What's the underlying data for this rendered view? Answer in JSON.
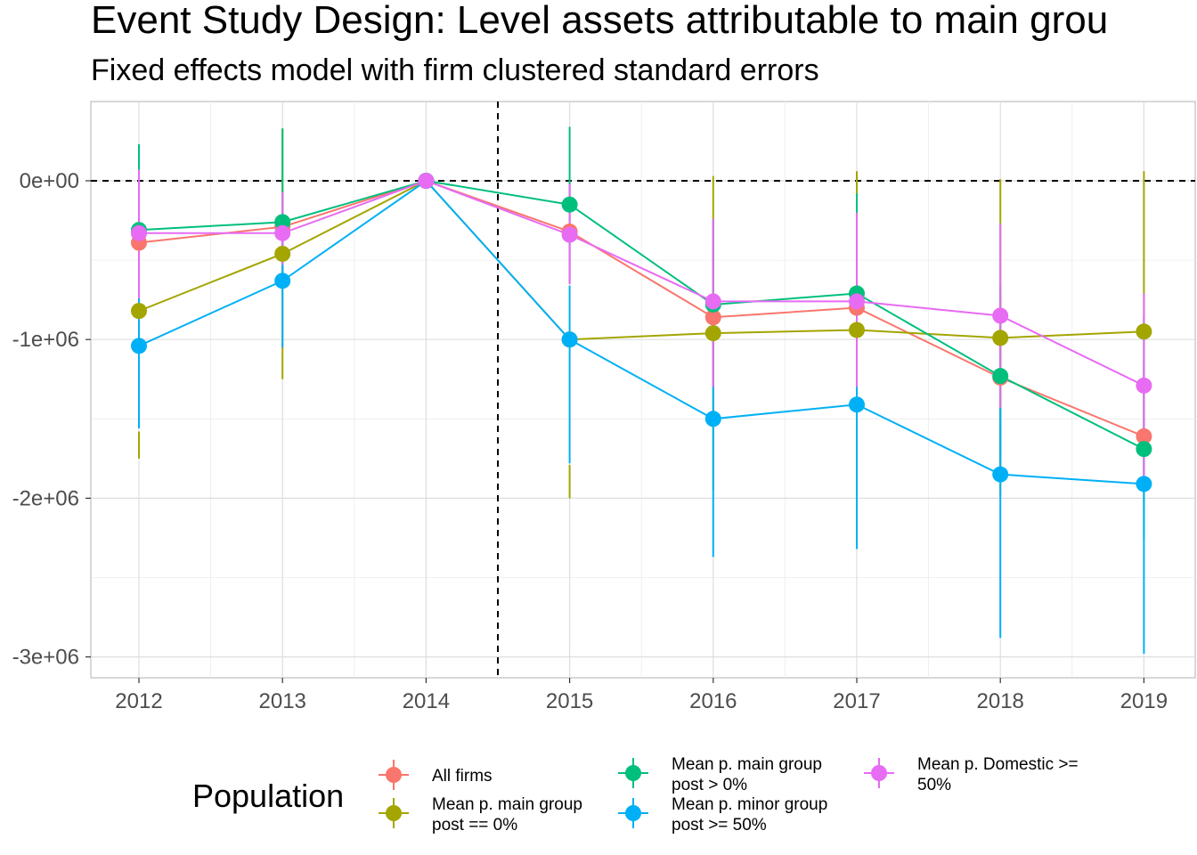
{
  "chart_data": {
    "type": "line",
    "title": "Event Study Design: Level assets attributable to main grou",
    "subtitle": "Fixed effects model with firm clustered standard errors",
    "xlabel": "",
    "ylabel": "",
    "x": [
      2012,
      2013,
      2014,
      2015,
      2016,
      2017,
      2018,
      2019
    ],
    "x_tick_labels": [
      "2012",
      "2013",
      "2014",
      "2015",
      "2016",
      "2017",
      "2018",
      "2019"
    ],
    "y_ticks": [
      0,
      -1000000,
      -2000000,
      -3000000
    ],
    "y_tick_labels": [
      "0e+00",
      "-1e+06",
      "-2e+06",
      "-3e+06"
    ],
    "xlim": [
      2011.7,
      2019.35
    ],
    "ylim": [
      -3140000,
      500000
    ],
    "reference_lines": {
      "horizontal_y": 0,
      "vertical_x": 2014.5
    },
    "grid": true,
    "legend": {
      "title": "Population",
      "position": "bottom"
    },
    "series": [
      {
        "name": "All firms",
        "color": "#F8766D",
        "values": [
          -390000,
          -290000,
          0,
          -320000,
          -860000,
          -800000,
          -1240000,
          -1610000
        ],
        "lower": [
          -720000,
          -560000,
          0,
          -650000,
          -1270000,
          -1300000,
          -1760000,
          -2050000
        ],
        "upper": [
          -60000,
          -20000,
          0,
          10000,
          -450000,
          -300000,
          -720000,
          -1170000
        ]
      },
      {
        "name": "Mean p. main group\npost == 0%",
        "color": "#A3A500",
        "values": [
          -820000,
          -460000,
          0,
          -1000000,
          -960000,
          -940000,
          -990000,
          -950000
        ],
        "lower": [
          -1750000,
          -1250000,
          0,
          -2000000,
          -1950000,
          -1950000,
          -1990000,
          -1960000
        ],
        "upper": [
          -1580000,
          330000,
          0,
          -1790000,
          30000,
          60000,
          10000,
          60000
        ]
      },
      {
        "name": "Mean p. main group\npost > 0%",
        "color": "#00BF7D",
        "values": [
          -310000,
          -260000,
          0,
          -150000,
          -780000,
          -710000,
          -1230000,
          -1690000
        ],
        "lower": [
          -500000,
          -600000,
          0,
          -640000,
          -1300000,
          -1300000,
          -1800000,
          -2250000
        ],
        "upper": [
          230000,
          330000,
          0,
          340000,
          -240000,
          -80000,
          -660000,
          -1130000
        ]
      },
      {
        "name": "Mean p. minor group\npost >= 50%",
        "color": "#00B0F6",
        "values": [
          -1040000,
          -630000,
          0,
          -1000000,
          -1500000,
          -1410000,
          -1850000,
          -1910000
        ],
        "lower": [
          -1560000,
          -1050000,
          0,
          -1780000,
          -2370000,
          -2320000,
          -2880000,
          -2980000
        ],
        "upper": [
          -740000,
          -200000,
          0,
          -660000,
          -1270000,
          -500000,
          -1430000,
          -850000
        ]
      },
      {
        "name": "Mean p. Domestic >=\n50%",
        "color": "#E76BF3",
        "values": [
          -330000,
          -330000,
          0,
          -340000,
          -760000,
          -760000,
          -850000,
          -1290000
        ],
        "lower": [
          -740000,
          -530000,
          0,
          -650000,
          -1300000,
          -1300000,
          -1430000,
          -1860000
        ],
        "upper": [
          70000,
          -70000,
          0,
          -20000,
          -240000,
          -200000,
          -270000,
          -710000
        ]
      }
    ]
  }
}
